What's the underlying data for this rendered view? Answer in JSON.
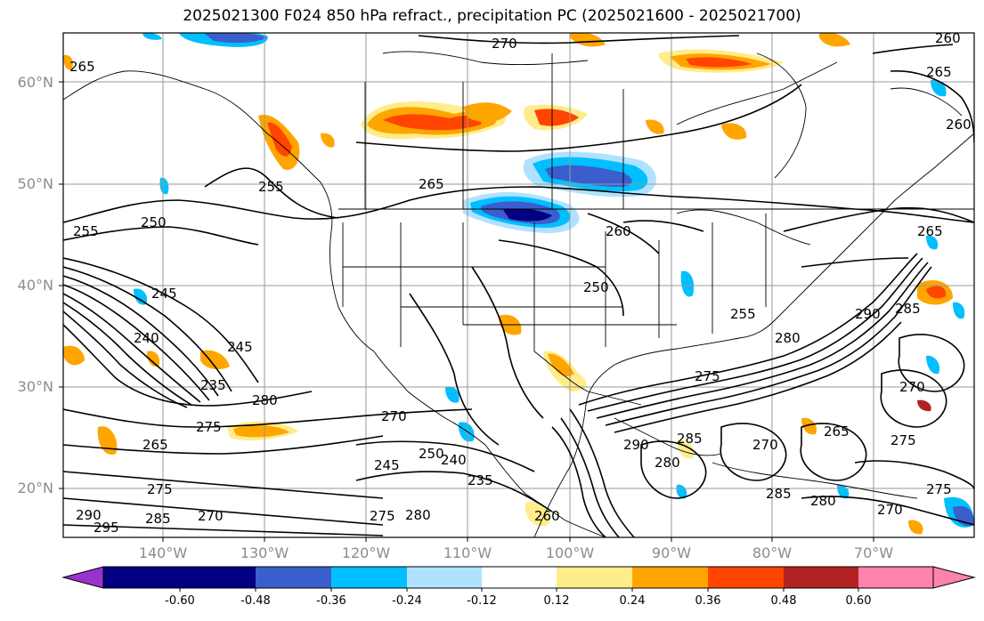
{
  "title": "2025021300 F024 850 hPa refract., precipitation PC (2025021600 - 2025021700)",
  "latitude_labels": [
    "60°N",
    "50°N",
    "40°N",
    "30°N",
    "20°N"
  ],
  "longitude_labels": [
    "140°W",
    "130°W",
    "120°W",
    "110°W",
    "100°W",
    "90°W",
    "80°W",
    "70°W"
  ],
  "contour_labels": [
    "270",
    "260",
    "265",
    "265",
    "255",
    "260",
    "250",
    "255",
    "265",
    "260",
    "250",
    "245",
    "240",
    "235",
    "280",
    "275",
    "275",
    "270",
    "265",
    "270",
    "250",
    "245",
    "240",
    "235",
    "275",
    "280",
    "285",
    "290",
    "295",
    "290",
    "285",
    "280",
    "275",
    "270",
    "265",
    "260",
    "290",
    "285",
    "280",
    "275",
    "270",
    "265",
    "285",
    "280",
    "275",
    "270",
    "255",
    "245"
  ],
  "colorbar": {
    "ticks": [
      "-0.60",
      "-0.48",
      "-0.36",
      "-0.24",
      "-0.12",
      "0.12",
      "0.24",
      "0.36",
      "0.48",
      "0.60"
    ],
    "colors": [
      "#9933cc",
      "#000080",
      "#3a5fcd",
      "#00bfff",
      "#b0e2ff",
      "#ffffff",
      "#ffec8b",
      "#ffa500",
      "#ff4500",
      "#b22222",
      "#ff82ab"
    ]
  }
}
